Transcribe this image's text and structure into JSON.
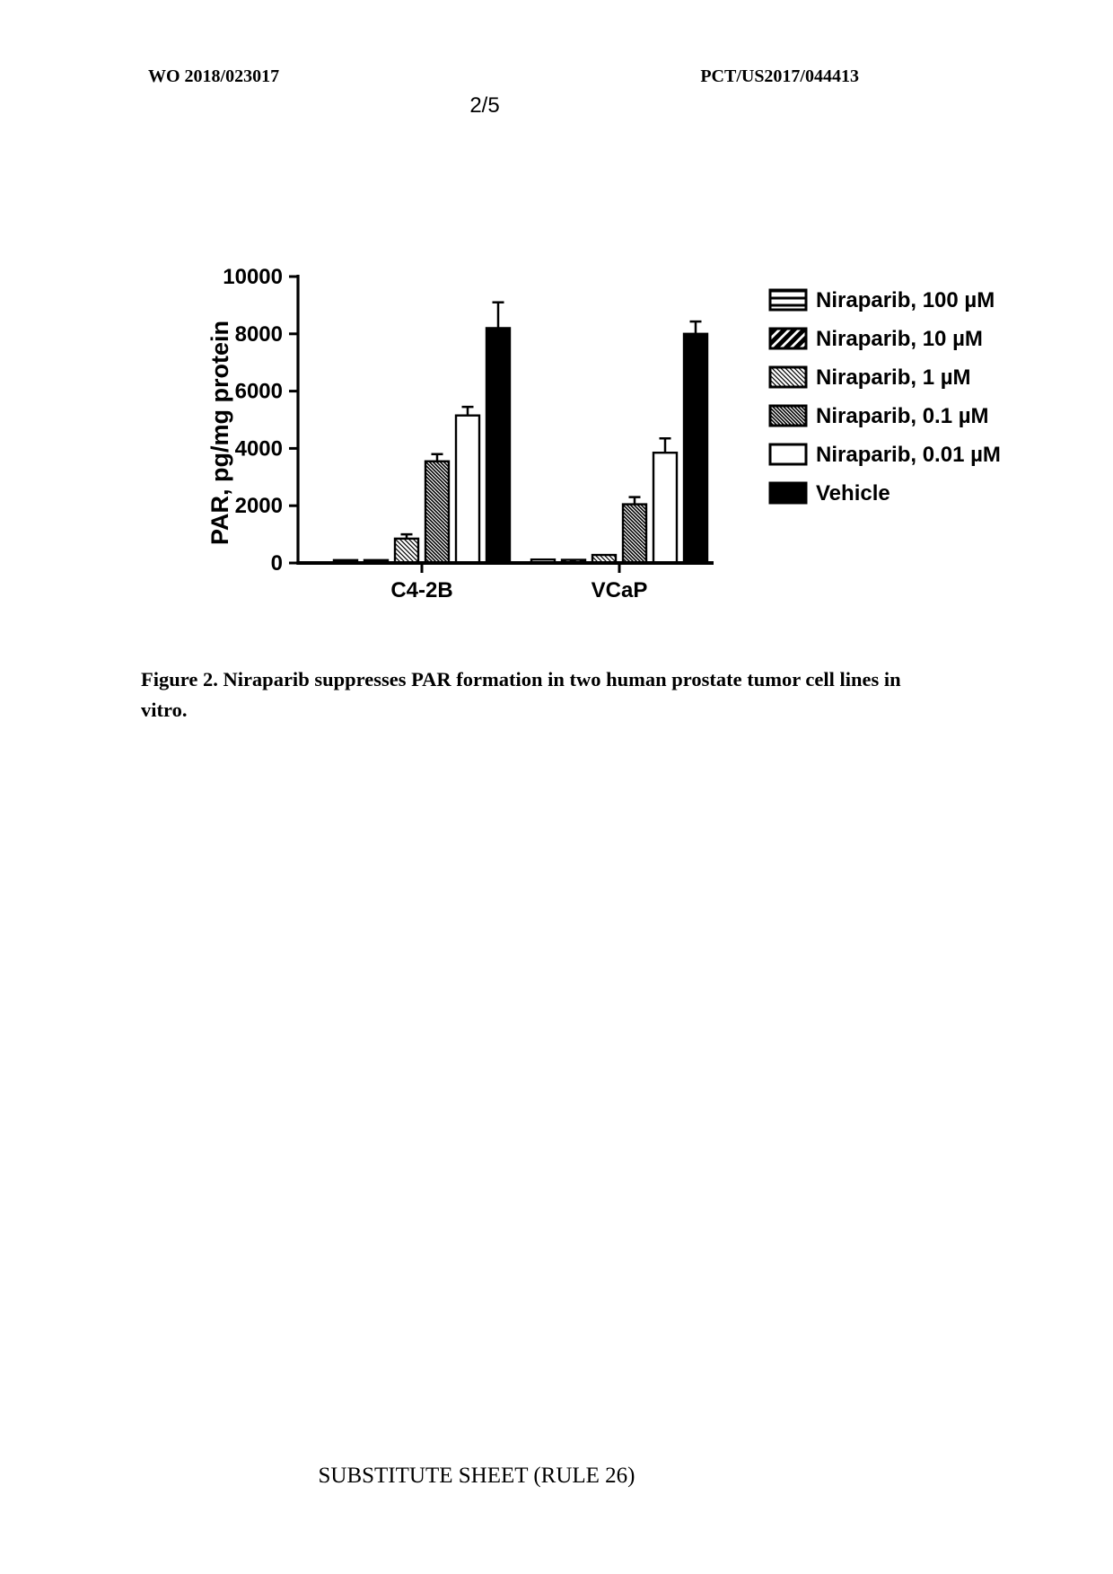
{
  "page": {
    "header_left": "WO 2018/023017",
    "header_right": "PCT/US2017/044413",
    "page_number": "2/5",
    "footer": "SUBSTITUTE SHEET (RULE 26)"
  },
  "figure": {
    "caption": "Figure 2. Niraparib suppresses PAR formation in two human prostate tumor cell lines in vitro."
  },
  "chart_data": {
    "type": "bar",
    "title": "",
    "xlabel": "",
    "ylabel": "PAR, pg/mg protein",
    "ylim": [
      0,
      10000
    ],
    "yticks": [
      0,
      2000,
      4000,
      6000,
      8000,
      10000
    ],
    "categories": [
      "C4-2B",
      "VCaP"
    ],
    "series": [
      {
        "name": "Niraparib, 100 µM",
        "pattern": "horizontal-lines",
        "values": [
          100,
          120
        ],
        "errors": [
          0,
          0
        ]
      },
      {
        "name": "Niraparib, 10 µM",
        "pattern": "bold-diagonal",
        "values": [
          100,
          110
        ],
        "errors": [
          0,
          0
        ]
      },
      {
        "name": "Niraparib, 1 µM",
        "pattern": "light-diagonal-hatch",
        "values": [
          850,
          280
        ],
        "errors": [
          150,
          0
        ]
      },
      {
        "name": "Niraparib, 0.1 µM",
        "pattern": "dense-diagonal-hatch",
        "values": [
          3550,
          2050
        ],
        "errors": [
          250,
          250
        ]
      },
      {
        "name": "Niraparib, 0.01 µM",
        "pattern": "open-white",
        "values": [
          5150,
          3850
        ],
        "errors": [
          300,
          500
        ]
      },
      {
        "name": "Vehicle",
        "pattern": "solid-black",
        "values": [
          8200,
          8000
        ],
        "errors": [
          900,
          430
        ]
      }
    ],
    "error_bars": "sd, upper only",
    "grid": false,
    "legend_position": "right",
    "colors": {
      "axis": "#000000",
      "bar_outline": "#000000",
      "open_fill": "#ffffff",
      "solid_fill": "#000000",
      "background": "#ffffff"
    }
  }
}
